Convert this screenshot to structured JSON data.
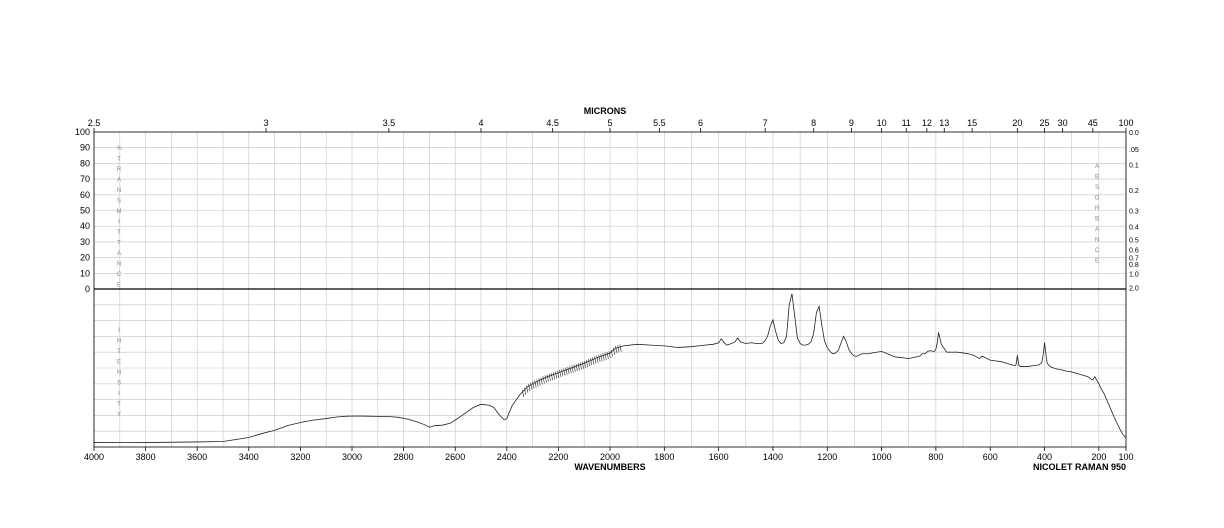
{
  "chart_data": {
    "type": "line",
    "title": "",
    "top_axis": {
      "label": "MICRONS",
      "ticks": [
        "2.5",
        "3",
        "3.5",
        "4",
        "4.5",
        "5",
        "5.5",
        "6",
        "7",
        "8",
        "9",
        "10",
        "11",
        "12",
        "13",
        "15",
        "20",
        "25",
        "30",
        "45",
        "100"
      ]
    },
    "bottom_axis": {
      "label": "WAVENUMBERS",
      "range": [
        4000,
        100
      ],
      "ticks": [
        "4000",
        "3800",
        "3600",
        "3400",
        "3200",
        "3000",
        "2800",
        "2600",
        "2400",
        "2200",
        "2000",
        "1800",
        "1600",
        "1400",
        "1200",
        "1000",
        "800",
        "600",
        "400",
        "200",
        "100"
      ]
    },
    "left_axis": {
      "label": "% TRANSMITTANCE",
      "range": [
        0,
        100
      ],
      "ticks": [
        "0",
        "10",
        "20",
        "30",
        "40",
        "50",
        "60",
        "70",
        "80",
        "90",
        "100"
      ]
    },
    "right_axis": {
      "label": "ABSORBANCE",
      "ticks": [
        "0.0",
        ".05",
        "0.1",
        "0.2",
        "0.3",
        "0.4",
        "0.5",
        "0.6",
        "0.7",
        "0.8",
        "1.0",
        "2.0"
      ]
    },
    "lower_panel_label": "INTENSITY",
    "instrument": "NICOLET RAMAN 950",
    "grid": true,
    "series": [
      {
        "x": [
          4000,
          3800,
          3600,
          3500,
          3400,
          3350,
          3300,
          3250,
          3200,
          3150,
          3100,
          3060,
          3020,
          2980,
          2940,
          2900,
          2860,
          2820,
          2780,
          2750,
          2720,
          2700,
          2680,
          2650,
          2620,
          2600,
          2560,
          2530,
          2500,
          2470,
          2450,
          2430,
          2410,
          2400,
          2380,
          2350,
          2320,
          2300,
          2250,
          2200,
          2150,
          2100,
          2050,
          2000,
          1980,
          1950,
          1900,
          1850,
          1800,
          1750,
          1700,
          1650,
          1620,
          1600,
          1590,
          1580,
          1570,
          1560,
          1540,
          1530,
          1520,
          1500,
          1480,
          1460,
          1440,
          1430,
          1420,
          1410,
          1400,
          1390,
          1380,
          1370,
          1360,
          1350,
          1340,
          1330,
          1320,
          1310,
          1300,
          1290,
          1280,
          1270,
          1260,
          1250,
          1240,
          1230,
          1220,
          1210,
          1200,
          1190,
          1180,
          1170,
          1160,
          1150,
          1140,
          1130,
          1120,
          1110,
          1100,
          1090,
          1080,
          1070,
          1050,
          1000,
          950,
          900,
          860,
          850,
          840,
          830,
          820,
          810,
          806,
          800,
          795,
          790,
          780,
          760,
          720,
          680,
          660,
          650,
          640,
          630,
          600,
          580,
          560,
          540,
          520,
          510,
          505,
          500,
          495,
          490,
          480,
          460,
          440,
          420,
          410,
          405,
          400,
          395,
          390,
          380,
          360,
          340,
          320,
          300,
          280,
          260,
          240,
          225,
          220,
          215,
          210,
          200,
          190,
          180,
          170,
          160,
          150,
          140,
          130,
          120,
          110,
          100
        ],
        "y": [
          2.9,
          2.8,
          3.2,
          3.5,
          6.0,
          8.5,
          10.5,
          13.5,
          15.5,
          17.0,
          18.0,
          19.0,
          19.5,
          19.6,
          19.5,
          19.4,
          19.3,
          18.8,
          17.5,
          16.0,
          14.2,
          12.5,
          13.5,
          13.8,
          15.0,
          17.0,
          21.5,
          25.0,
          27.0,
          26.5,
          25.0,
          20.5,
          17.2,
          18.0,
          26.0,
          33.0,
          38.0,
          40.0,
          44.0,
          47.0,
          50.0,
          53.0,
          56.5,
          59.5,
          62.5,
          64.0,
          65.0,
          64.5,
          64.0,
          63.0,
          63.5,
          64.5,
          65.0,
          66.0,
          68.5,
          66.0,
          64.5,
          65.0,
          66.5,
          69.0,
          66.5,
          65.5,
          66.0,
          65.5,
          65.5,
          67.0,
          70.0,
          76.5,
          80.5,
          73.0,
          67.5,
          65.5,
          66.0,
          70.0,
          90.0,
          97.0,
          83.0,
          69.0,
          65.5,
          64.5,
          64.5,
          65.0,
          66.5,
          72.0,
          85.0,
          89.0,
          77.0,
          67.0,
          63.0,
          60.5,
          59.0,
          59.5,
          61.0,
          65.5,
          70.0,
          66.5,
          61.5,
          59.0,
          57.5,
          57.5,
          58.5,
          59.0,
          59.0,
          60.5,
          57.0,
          56.0,
          57.5,
          59.0,
          59.0,
          60.5,
          61.0,
          60.5,
          60.5,
          62.0,
          66.0,
          72.5,
          65.0,
          60.0,
          60.0,
          59.0,
          58.0,
          57.0,
          56.0,
          57.5,
          55.0,
          54.5,
          54.0,
          53.0,
          52.0,
          51.5,
          52.0,
          58.0,
          52.0,
          51.0,
          51.0,
          51.0,
          51.5,
          52.0,
          53.5,
          58.5,
          66.0,
          59.0,
          53.0,
          51.0,
          49.5,
          49.0,
          48.0,
          47.5,
          46.5,
          45.5,
          44.5,
          42.5,
          43.0,
          44.5,
          43.0,
          40.0,
          36.5,
          33.5,
          29.5,
          25.5,
          21.5,
          17.5,
          14.0,
          10.5,
          7.5,
          6.0
        ]
      }
    ]
  }
}
